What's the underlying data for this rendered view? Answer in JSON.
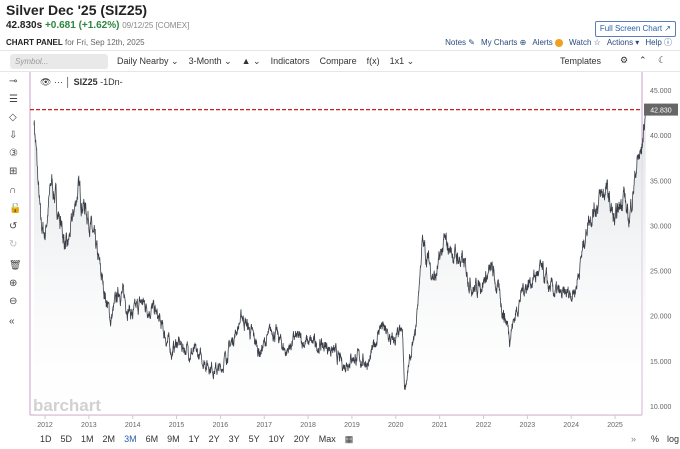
{
  "header": {
    "title": "Silver Dec '25 (SIZ25)",
    "last": "42.830s",
    "change": "+0.681 (+1.62%)",
    "meta": "09/12/25 [COMEX]",
    "panel_label": "CHART PANEL",
    "panel_date": "for Fri, Sep 12th, 2025",
    "full_screen": "Full Screen Chart ↗"
  },
  "links": [
    {
      "label": "Notes ✎"
    },
    {
      "label": "My Charts ⊕"
    },
    {
      "label": "Alerts"
    },
    {
      "label": "Watch ☆"
    },
    {
      "label": "Actions ▾"
    },
    {
      "label": "Help ⓘ"
    }
  ],
  "toolbar": {
    "search_placeholder": "Symbol...",
    "aggregation": "Daily Nearby ⌄",
    "period": "3-Month ⌄",
    "chart_type": "▲ ⌄",
    "indicators": "Indicators",
    "compare": "Compare",
    "fx": "f(x)",
    "layout": "1x1 ⌄",
    "templates": "Templates",
    "gear": "⚙",
    "collapse": "⌃",
    "theme": "☾"
  },
  "legend": {
    "eye": "👁 ···",
    "symbol": "SIZ25",
    "interval": "-1Dn-"
  },
  "watermark": "barchart",
  "timerange": {
    "buttons": [
      "1D",
      "5D",
      "1M",
      "2M",
      "3M",
      "6M",
      "9M",
      "1Y",
      "2Y",
      "3Y",
      "5Y",
      "10Y",
      "20Y",
      "Max"
    ],
    "active": "3M",
    "calendar": "▦",
    "expand": "»",
    "pct": "%",
    "log": "log"
  },
  "left_tools": [
    "⊸",
    "☰",
    "◇",
    "⇩",
    "③",
    "⊞",
    "∩",
    "🔓",
    "↺",
    "↻",
    "🗑",
    "⊕",
    "⊖",
    "«"
  ],
  "colors": {
    "line": "#3a3f47",
    "last_price_line": "#cc1f1f",
    "price_tag": "#666666",
    "axis": "#c8a0c8"
  },
  "chart_data": {
    "type": "line",
    "ylim": [
      10,
      45
    ],
    "y_ticks": [
      "45.000",
      "40.000",
      "35.000",
      "30.000",
      "25.000",
      "20.000",
      "15.000",
      "10.000"
    ],
    "x_ticks": [
      "2012",
      "2013",
      "2014",
      "2015",
      "2016",
      "2017",
      "2018",
      "2019",
      "2020",
      "2021",
      "2022",
      "2023",
      "2024",
      "2025"
    ],
    "last_price": "42.830",
    "series": [
      {
        "x": [
          2011.75,
          2011.9,
          2012.0,
          2012.15,
          2012.5,
          2012.75,
          2013.0,
          2013.3,
          2013.5,
          2013.7,
          2014.0,
          2014.2,
          2014.5,
          2014.9,
          2015.0,
          2015.5,
          2015.9,
          2016.0,
          2016.5,
          2016.9,
          2017.2,
          2017.5,
          2017.7,
          2018.0,
          2018.5,
          2018.8,
          2019.0,
          2019.4,
          2019.65,
          2019.9,
          2020.15,
          2020.2,
          2020.45,
          2020.6,
          2020.9,
          2021.1,
          2021.5,
          2021.8,
          2022.2,
          2022.6,
          2022.9,
          2023.3,
          2023.5,
          2023.8,
          2024.1,
          2024.4,
          2024.8,
          2025.0,
          2025.2,
          2025.3,
          2025.5,
          2025.6,
          2025.7
        ],
        "y": [
          42,
          30,
          29,
          35,
          27,
          34,
          31,
          24,
          19.5,
          23,
          20,
          21.5,
          20.5,
          16,
          17,
          15.5,
          14,
          14,
          20,
          16,
          18.5,
          16,
          17.5,
          17,
          16.5,
          14.5,
          15.5,
          14.8,
          19,
          17,
          18,
          12,
          18,
          28,
          24,
          28,
          26,
          23,
          25,
          18,
          23,
          25,
          23,
          22,
          23,
          31,
          34,
          30,
          34,
          30,
          37,
          38,
          42.83
        ]
      }
    ]
  }
}
